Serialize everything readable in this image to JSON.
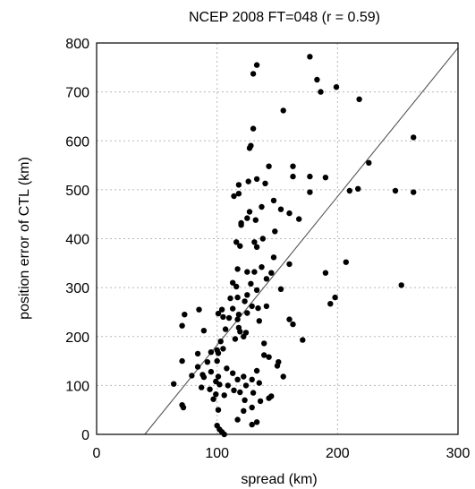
{
  "chart_data": {
    "type": "scatter",
    "title": "NCEP 2008 FT=048 (r = 0.59)",
    "xlabel": "spread (km)",
    "ylabel": "position error of CTL (km)",
    "xlim": [
      0,
      300
    ],
    "ylim": [
      0,
      800
    ],
    "xticks": [
      "0",
      "100",
      "200",
      "300"
    ],
    "yticks": [
      "0",
      "100",
      "200",
      "300",
      "400",
      "500",
      "600",
      "700",
      "800"
    ],
    "grid": true,
    "reference_line": {
      "x": [
        40,
        300
      ],
      "y": [
        0,
        790
      ]
    },
    "points": [
      [
        177,
        772
      ],
      [
        133,
        755
      ],
      [
        130,
        737
      ],
      [
        183,
        725
      ],
      [
        199,
        710
      ],
      [
        186,
        700
      ],
      [
        218,
        685
      ],
      [
        155,
        662
      ],
      [
        130,
        625
      ],
      [
        128,
        590
      ],
      [
        127,
        585
      ],
      [
        263,
        607
      ],
      [
        226,
        555
      ],
      [
        143,
        548
      ],
      [
        163,
        548
      ],
      [
        190,
        525
      ],
      [
        177,
        527
      ],
      [
        163,
        527
      ],
      [
        133,
        522
      ],
      [
        126,
        517
      ],
      [
        140,
        513
      ],
      [
        118,
        510
      ],
      [
        210,
        498
      ],
      [
        217,
        502
      ],
      [
        248,
        498
      ],
      [
        263,
        495
      ],
      [
        177,
        495
      ],
      [
        118,
        492
      ],
      [
        114,
        487
      ],
      [
        147,
        478
      ],
      [
        137,
        465
      ],
      [
        153,
        460
      ],
      [
        127,
        455
      ],
      [
        160,
        452
      ],
      [
        125,
        442
      ],
      [
        132,
        438
      ],
      [
        168,
        440
      ],
      [
        120,
        432
      ],
      [
        120,
        428
      ],
      [
        148,
        415
      ],
      [
        138,
        400
      ],
      [
        131,
        393
      ],
      [
        116,
        393
      ],
      [
        119,
        385
      ],
      [
        133,
        383
      ],
      [
        147,
        362
      ],
      [
        160,
        348
      ],
      [
        137,
        342
      ],
      [
        207,
        352
      ],
      [
        190,
        330
      ],
      [
        253,
        305
      ],
      [
        117,
        338
      ],
      [
        125,
        332
      ],
      [
        131,
        332
      ],
      [
        145,
        330
      ],
      [
        141,
        318
      ],
      [
        113,
        310
      ],
      [
        128,
        308
      ],
      [
        116,
        302
      ],
      [
        153,
        297
      ],
      [
        133,
        295
      ],
      [
        125,
        285
      ],
      [
        198,
        280
      ],
      [
        117,
        280
      ],
      [
        111,
        278
      ],
      [
        123,
        272
      ],
      [
        194,
        267
      ],
      [
        141,
        262
      ],
      [
        129,
        262
      ],
      [
        134,
        258
      ],
      [
        113,
        257
      ],
      [
        104,
        255
      ],
      [
        85,
        255
      ],
      [
        101,
        247
      ],
      [
        125,
        248
      ],
      [
        73,
        245
      ],
      [
        118,
        245
      ],
      [
        105,
        240
      ],
      [
        110,
        238
      ],
      [
        117,
        235
      ],
      [
        160,
        235
      ],
      [
        135,
        232
      ],
      [
        71,
        222
      ],
      [
        118,
        218
      ],
      [
        163,
        225
      ],
      [
        107,
        215
      ],
      [
        89,
        212
      ],
      [
        119,
        210
      ],
      [
        124,
        208
      ],
      [
        122,
        200
      ],
      [
        115,
        195
      ],
      [
        171,
        193
      ],
      [
        103,
        190
      ],
      [
        139,
        186
      ],
      [
        105,
        175
      ],
      [
        100,
        172
      ],
      [
        95,
        168
      ],
      [
        84,
        165
      ],
      [
        101,
        166
      ],
      [
        139,
        162
      ],
      [
        143,
        158
      ],
      [
        100,
        150
      ],
      [
        92,
        148
      ],
      [
        151,
        148
      ],
      [
        71,
        150
      ],
      [
        150,
        140
      ],
      [
        84,
        138
      ],
      [
        108,
        135
      ],
      [
        133,
        130
      ],
      [
        95,
        128
      ],
      [
        113,
        125
      ],
      [
        88,
        122
      ],
      [
        79,
        120
      ],
      [
        101,
        118
      ],
      [
        122,
        118
      ],
      [
        155,
        118
      ],
      [
        89,
        117
      ],
      [
        117,
        112
      ],
      [
        129,
        112
      ],
      [
        99,
        108
      ],
      [
        135,
        105
      ],
      [
        64,
        103
      ],
      [
        102,
        102
      ],
      [
        109,
        100
      ],
      [
        124,
        100
      ],
      [
        87,
        96
      ],
      [
        94,
        92
      ],
      [
        114,
        90
      ],
      [
        119,
        86
      ],
      [
        99,
        82
      ],
      [
        130,
        85
      ],
      [
        106,
        80
      ],
      [
        145,
        78
      ],
      [
        143,
        74
      ],
      [
        97,
        72
      ],
      [
        123,
        70
      ],
      [
        136,
        68
      ],
      [
        71,
        60
      ],
      [
        72,
        55
      ],
      [
        101,
        50
      ],
      [
        129,
        55
      ],
      [
        122,
        48
      ],
      [
        117,
        30
      ],
      [
        133,
        25
      ],
      [
        129,
        20
      ],
      [
        100,
        18
      ],
      [
        102,
        10
      ],
      [
        104,
        5
      ],
      [
        106,
        0
      ]
    ]
  }
}
